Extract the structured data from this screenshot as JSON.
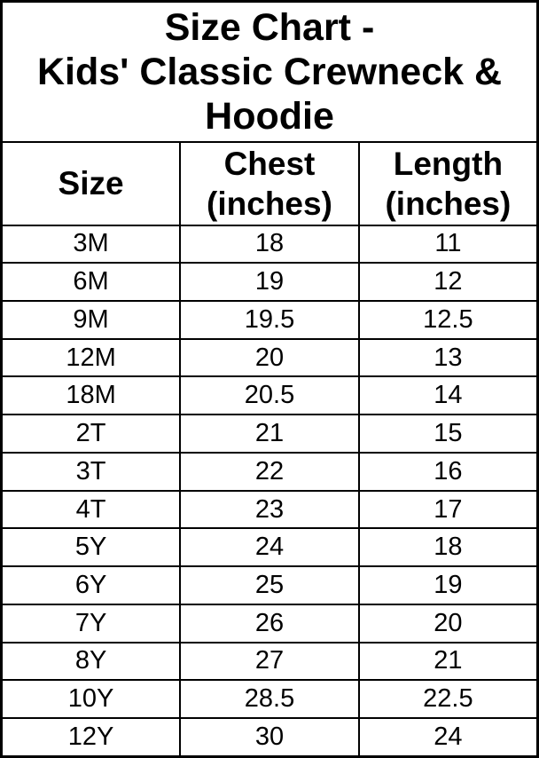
{
  "display": {
    "title": "Size Chart -\nKids' Classic Crewneck &\nHoodie",
    "columns": [
      "Size",
      "Chest\n(inches)",
      "Length\n(inches)"
    ]
  },
  "colors": {
    "background": "#ffffff",
    "text": "#000000",
    "border": "#000000"
  },
  "chart_data": {
    "type": "table",
    "title": "Size Chart - Kids' Classic Crewneck & Hoodie",
    "columns": [
      "Size",
      "Chest (inches)",
      "Length (inches)"
    ],
    "rows": [
      [
        "3M",
        18,
        11
      ],
      [
        "6M",
        19,
        12
      ],
      [
        "9M",
        19.5,
        12.5
      ],
      [
        "12M",
        20,
        13
      ],
      [
        "18M",
        20.5,
        14
      ],
      [
        "2T",
        21,
        15
      ],
      [
        "3T",
        22,
        16
      ],
      [
        "4T",
        23,
        17
      ],
      [
        "5Y",
        24,
        18
      ],
      [
        "6Y",
        25,
        19
      ],
      [
        "7Y",
        26,
        20
      ],
      [
        "8Y",
        27,
        21
      ],
      [
        "10Y",
        28.5,
        22.5
      ],
      [
        "12Y",
        30,
        24
      ]
    ]
  }
}
